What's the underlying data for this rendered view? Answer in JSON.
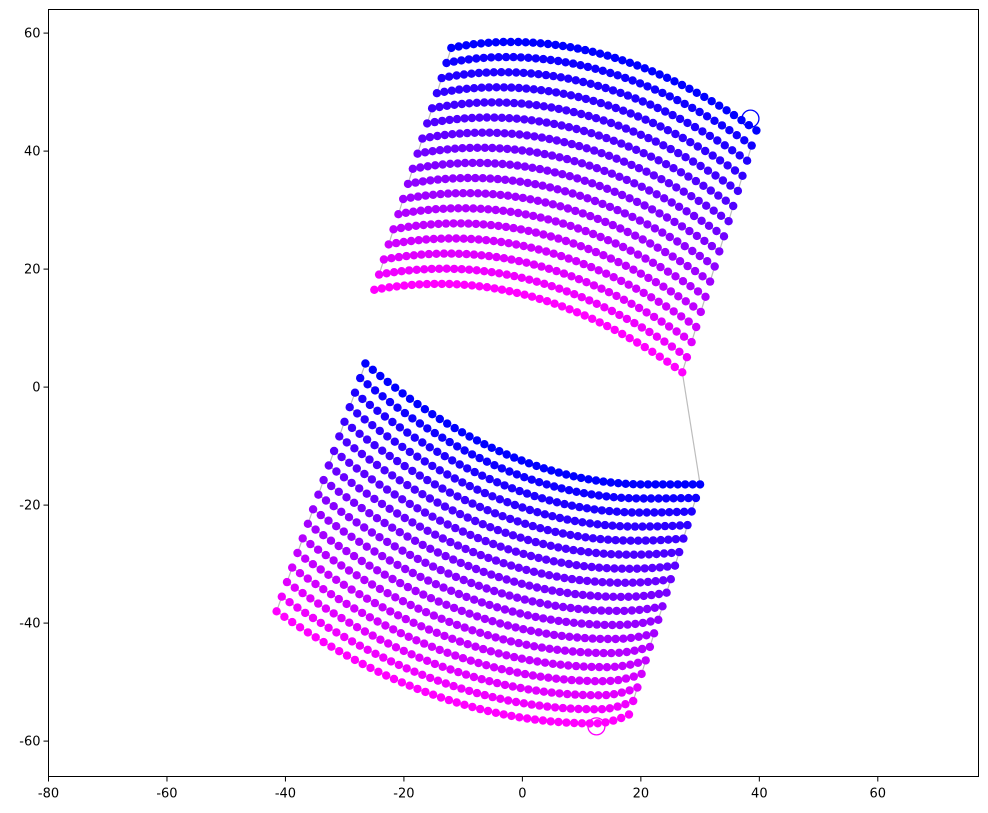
{
  "chart_data": {
    "type": "scatter",
    "xlim": [
      -80,
      77
    ],
    "ylim": [
      -66,
      64
    ],
    "grid": false,
    "legend": "none",
    "x_ticks": [
      "-80",
      "-60",
      "-40",
      "-20",
      "0",
      "20",
      "40",
      "60"
    ],
    "x_tick_values": [
      -80,
      -60,
      -40,
      -20,
      0,
      20,
      40,
      60
    ],
    "y_ticks": [
      "60",
      "40",
      "20",
      "0",
      "-20",
      "-40",
      "-60"
    ],
    "y_tick_values": [
      60,
      40,
      20,
      0,
      -20,
      -40,
      -60
    ],
    "colors": {
      "start": "#0000ff",
      "end": "#ff00ff",
      "path": "#bdbdbd"
    },
    "upper_block": {
      "rows": 17,
      "top_row_left": [
        -12,
        57.5
      ],
      "top_row_peak": [
        -2,
        58.5
      ],
      "top_row_right": [
        39.5,
        43.5
      ],
      "bottom_row_left": [
        -25,
        16.5
      ],
      "bottom_row_peak": [
        -14,
        17.5
      ],
      "bottom_row_right": [
        27,
        2.5
      ]
    },
    "lower_block": {
      "rows": 18,
      "top_row_left": [
        -26.5,
        4
      ],
      "top_row_trough": [
        21,
        -16.5
      ],
      "top_row_right": [
        30,
        -16.5
      ],
      "bottom_row_left": [
        -41.5,
        -38
      ],
      "bottom_row_trough": [
        12,
        -57
      ],
      "bottom_row_right": [
        18,
        -55.5
      ]
    },
    "markers": [
      {
        "name": "start",
        "x": 38.5,
        "y": 45.5,
        "color": "#0000ff"
      },
      {
        "name": "end",
        "x": 12.5,
        "y": -57.5,
        "color": "#ff00ff"
      }
    ]
  }
}
